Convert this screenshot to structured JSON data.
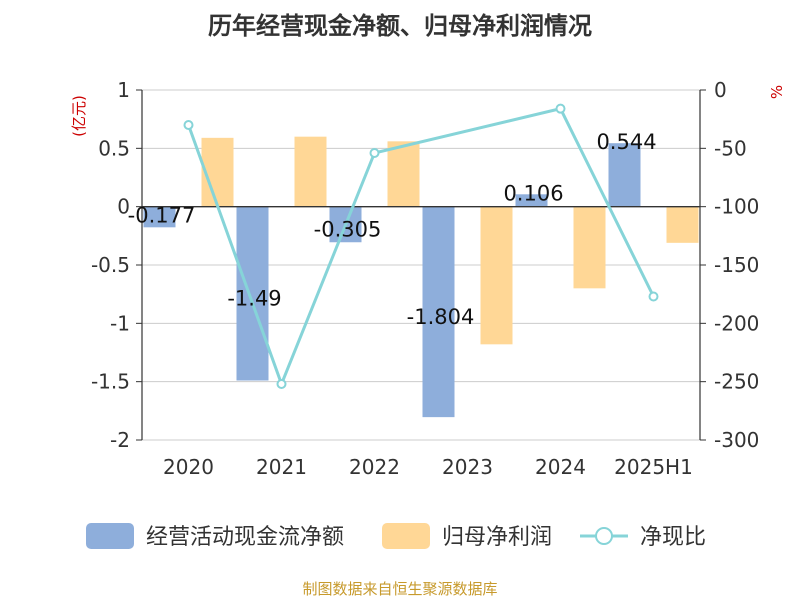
{
  "chart_data": {
    "type": "bar",
    "title": "历年经营现金净额、归母净利润情况",
    "categories": [
      "2020",
      "2021",
      "2022",
      "2023",
      "2024",
      "2025H1"
    ],
    "series": [
      {
        "name": "经营活动现金流净额",
        "kind": "bar",
        "axis": "left",
        "color": "#8eaedb",
        "values": [
          -0.177,
          -1.49,
          -0.305,
          -1.804,
          0.106,
          0.544
        ],
        "labels": [
          "-0.177",
          "-1.49",
          "-0.305",
          "-1.804",
          "0.106",
          "0.544"
        ]
      },
      {
        "name": "归母净利润",
        "kind": "bar",
        "axis": "left",
        "color": "#ffd796",
        "values": [
          0.59,
          0.6,
          0.56,
          -1.18,
          -0.7,
          -0.31
        ]
      },
      {
        "name": "净现比",
        "kind": "line",
        "axis": "right",
        "color": "#86d4d8",
        "values": [
          -30,
          -252,
          -54,
          null,
          -16,
          -177
        ]
      }
    ],
    "yleft": {
      "label": "(亿元)",
      "ticks": [
        "1",
        "0.5",
        "0",
        "-0.5",
        "-1",
        "-1.5",
        "-2"
      ],
      "ylim": [
        -2,
        1
      ]
    },
    "yright": {
      "label": "%",
      "ticks": [
        "0",
        "-50",
        "-100",
        "-150",
        "-200",
        "-250",
        "-300"
      ],
      "ylim": [
        -300,
        0
      ]
    },
    "grid": true,
    "legend_position": "bottom"
  },
  "source": "制图数据来自恒生聚源数据库",
  "colors": {
    "axis_label_red": "#cc0000",
    "source_text": "#c79a2c",
    "grid": "#cccccc",
    "text": "#333333"
  }
}
